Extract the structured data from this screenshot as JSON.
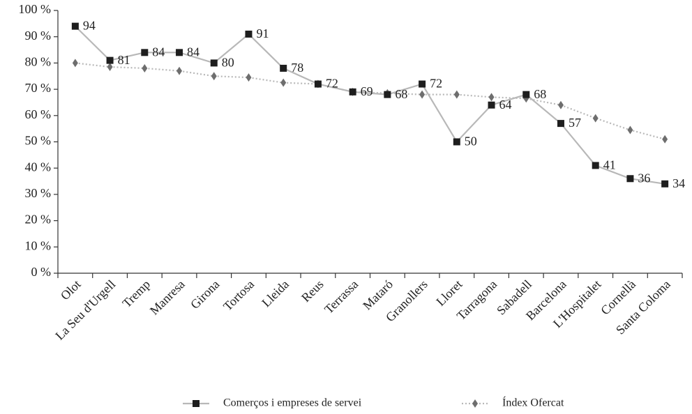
{
  "chart_data": {
    "type": "line",
    "categories": [
      "Olot",
      "La Seu d'Urgell",
      "Tremp",
      "Manresa",
      "Girona",
      "Tortosa",
      "Lleida",
      "Reus",
      "Terrassa",
      "Mataró",
      "Granollers",
      "Lloret",
      "Tarragona",
      "Sabadell",
      "Barcelona",
      "L'Hospitalet",
      "Cornellà",
      "Santa Coloma"
    ],
    "series": [
      {
        "name": "Comerços i empreses de servei",
        "color": "#b8b8b8",
        "marker_color": "#1e1e1e",
        "marker": "square",
        "line_style": "solid",
        "data_labels": true,
        "values": [
          94,
          81,
          84,
          84,
          80,
          91,
          78,
          72,
          69,
          68,
          72,
          50,
          64,
          68,
          57,
          41,
          36,
          34
        ]
      },
      {
        "name": "Índex Ofercat",
        "color": "#b8b8b8",
        "marker_color": "#6e6e6e",
        "marker": "diamond",
        "line_style": "dotted",
        "data_labels": false,
        "values": [
          80,
          78.5,
          78,
          77,
          75,
          74.5,
          72.5,
          72,
          69,
          68.5,
          68,
          68,
          67,
          66.5,
          64,
          59,
          54.5,
          51
        ]
      }
    ],
    "ylim": [
      0,
      100
    ],
    "yticks": [
      {
        "value": 0,
        "label": "0 %"
      },
      {
        "value": 10,
        "label": "10 %"
      },
      {
        "value": 20,
        "label": "20 %"
      },
      {
        "value": 30,
        "label": "30 %"
      },
      {
        "value": 40,
        "label": "40 %"
      },
      {
        "value": 50,
        "label": "50 %"
      },
      {
        "value": 60,
        "label": "60 %"
      },
      {
        "value": 70,
        "label": "70 %"
      },
      {
        "value": 80,
        "label": "80 %"
      },
      {
        "value": 90,
        "label": "90 %"
      },
      {
        "value": 100,
        "label": "100 %"
      }
    ],
    "grid": false
  }
}
